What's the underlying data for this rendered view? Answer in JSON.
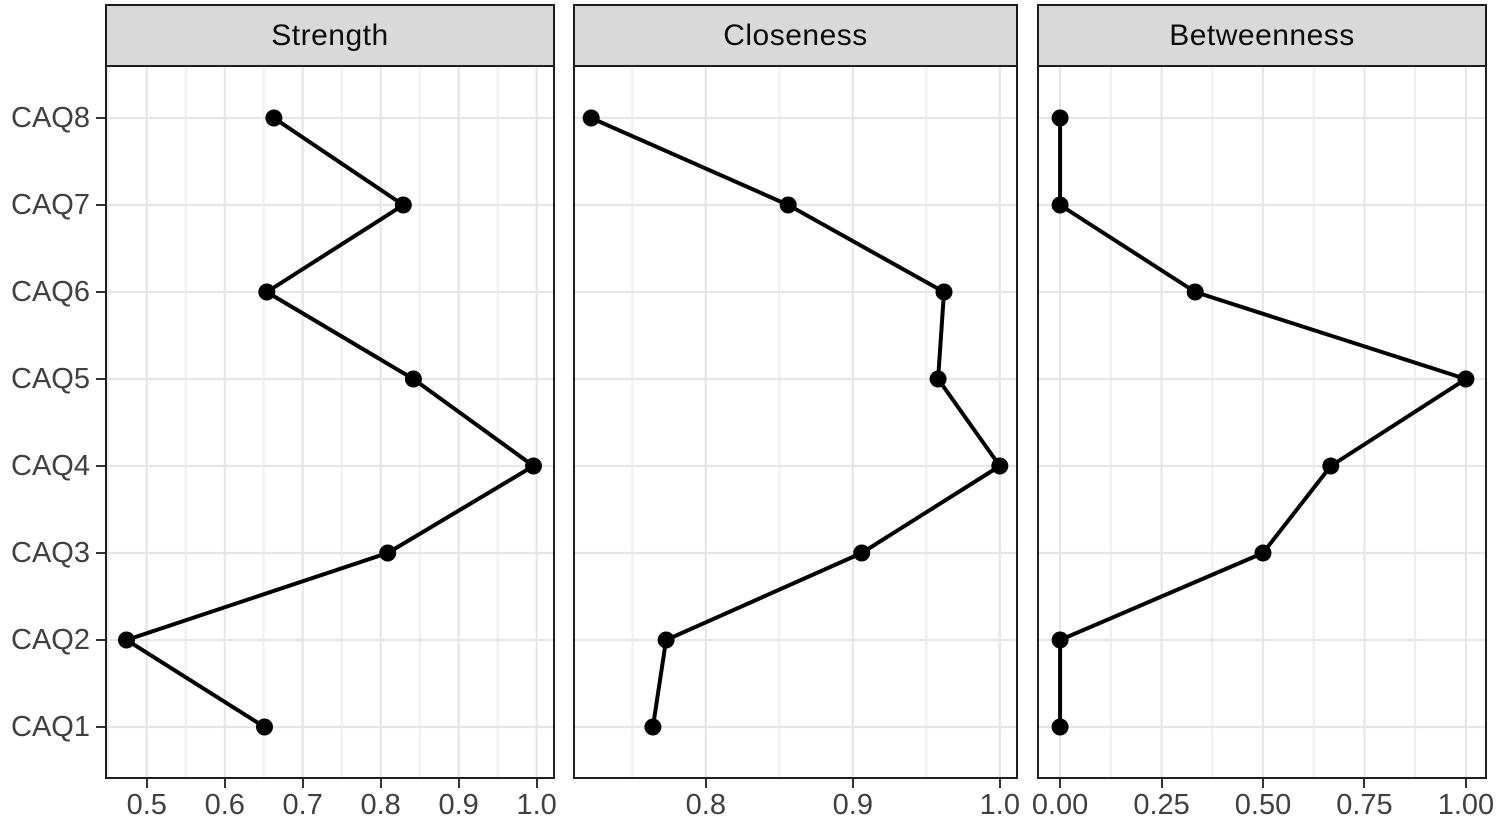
{
  "chart_data": {
    "type": "line",
    "layout": "three horizontal facets with shared categorical y-axis, dot-and-line series",
    "grid": true,
    "legend": false,
    "categories_top_to_bottom": [
      "CAQ8",
      "CAQ7",
      "CAQ6",
      "CAQ5",
      "CAQ4",
      "CAQ3",
      "CAQ2",
      "CAQ1"
    ],
    "panels": [
      {
        "title": "Strength",
        "xlim": [
          0.449,
          1.021
        ],
        "tick_values": [
          0.5,
          0.6,
          0.7,
          0.8,
          0.9,
          1.0
        ],
        "tick_labels": [
          "0.5",
          "0.6",
          "0.7",
          "0.8",
          "0.9",
          "1.0"
        ],
        "minor_tick_values": [
          0.45,
          0.55,
          0.65,
          0.75,
          0.85,
          0.95
        ],
        "values": [
          0.663,
          0.829,
          0.654,
          0.842,
          0.996,
          0.809,
          0.474,
          0.651
        ]
      },
      {
        "title": "Closeness",
        "xlim": [
          0.711,
          1.011
        ],
        "tick_values": [
          0.8,
          0.9,
          1.0
        ],
        "tick_labels": [
          "0.8",
          "0.9",
          "1.0"
        ],
        "minor_tick_values": [
          0.75,
          0.85,
          0.95
        ],
        "values": [
          0.722,
          0.856,
          0.962,
          0.958,
          1.0,
          0.906,
          0.773,
          0.764
        ]
      },
      {
        "title": "Betweenness",
        "xlim": [
          -0.052,
          1.047
        ],
        "tick_values": [
          0,
          0.25,
          0.5,
          0.75,
          1.0
        ],
        "tick_labels": [
          "0.00",
          "0.25",
          "0.50",
          "0.75",
          "1.00"
        ],
        "minor_tick_values": [
          0.125,
          0.375,
          0.625,
          0.875
        ],
        "values": [
          0,
          0,
          0.333,
          1.0,
          0.667,
          0.5,
          0,
          0
        ]
      }
    ]
  },
  "style": {
    "background": "#FFFFFF",
    "point_color": "#000000",
    "line_color": "#000000",
    "strip_fill": "#D9D9D9",
    "strip_border": "#1A1A1A",
    "strip_text": "#0D0D0D",
    "panel_border": "#1F1F1F",
    "grid_major_color": "#E6E6E6",
    "grid_minor_color": "#EFEFEF",
    "axis_text_color": "#404040",
    "tick_color": "#333333"
  }
}
